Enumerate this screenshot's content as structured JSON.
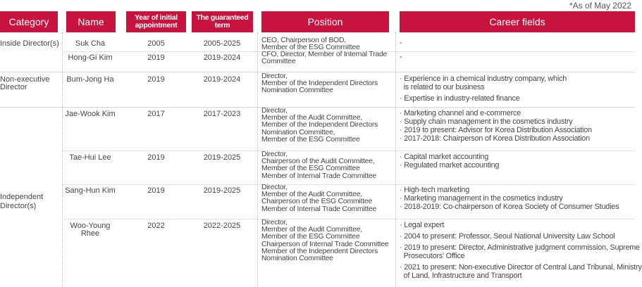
{
  "note": "*As of May 2022",
  "headers": {
    "category": "Category",
    "name": "Name",
    "year": "Year of initial appointment",
    "term": "The guaranteed term",
    "position": "Position",
    "career": "Career fields"
  },
  "categories": {
    "inside": "Inside Director(s)",
    "nonexec_1": "Non-executive",
    "nonexec_2": "Director",
    "indep_1": "Independent",
    "indep_2": "Director(s)"
  },
  "rows": [
    {
      "name": "Suk Cha",
      "year": "2005",
      "term": "2005-2025",
      "position": [
        "CEO, Chairperson of BOD,",
        "Member of the ESG Committee"
      ],
      "career": [
        "-"
      ]
    },
    {
      "name": "Hong-Gi Kim",
      "year": "2019",
      "term": "2019-2024",
      "position": [
        "CFO, Director, Member of Internal Trade",
        "Committee"
      ],
      "career": [
        "-"
      ]
    },
    {
      "name": "Bum-Jong Ha",
      "year": "2019",
      "term": "2019-2024",
      "position": [
        "Director,",
        "Member of the Independent Directors",
        "Nomination Committee"
      ],
      "career": [
        "· Experience in a chemical industry company, which",
        "  is related to our business",
        "· Expertise in industry-related finance"
      ]
    },
    {
      "name": "Jae-Wook Kim",
      "year": "2017",
      "term": "2017-2023",
      "position": [
        "Director,",
        "Member of the Audit Committee,",
        "Member of the Independent Directors",
        "Nomination Committee,",
        "Member of the ESG Committee"
      ],
      "career": [
        "· Marketing channel and e-commerce",
        "· Supply chain management in the cosmetics industry",
        "· 2019 to present: Advisor for Korea Distribution Association",
        "· 2017-2018: Chairperson of Korea Distribution Association"
      ]
    },
    {
      "name": "Tae-Hui Lee",
      "year": "2019",
      "term": "2019-2025",
      "position": [
        "Director,",
        "Chairperson of the Audit Committee,",
        "Member of the ESG Committee",
        "Member of Internal Trade Committee"
      ],
      "career": [
        "· Capital market accounting",
        "· Regulated market accounting"
      ]
    },
    {
      "name": "Sang-Hun Kim",
      "year": "2019",
      "term": "2019-2025",
      "position": [
        "Director,",
        "Member of the Audit Committee,",
        "Chairperson of the ESG Committee",
        "Member of Internal Trade Committee"
      ],
      "career": [
        "· High-tech marketing",
        "· Marketing management in the cosmetics industry",
        "· 2018-2019: Co-chairperson of Korea Society of Consumer Studies"
      ]
    },
    {
      "name": "Woo-Young Rhee",
      "year": "2022",
      "term": "2022-2025",
      "position": [
        "Director,",
        "Member of the Audit Committee,",
        "Member of the ESG Committee",
        "Chairperson of Internal Trade Committee",
        "Member of the Independent Directors",
        "Nomination Committee"
      ],
      "career": [
        "· Legal expert",
        "· 2004 to present: Professor, Seoul National University Law School",
        "· 2019 to present: Director, Administrative judgment commission, Supreme",
        "  Prosecutors' Office",
        "· 2021 to present: Non-executive Director of Central Land Tribunal, Ministry",
        "  of Land, Infrastructure and Transport"
      ]
    }
  ]
}
